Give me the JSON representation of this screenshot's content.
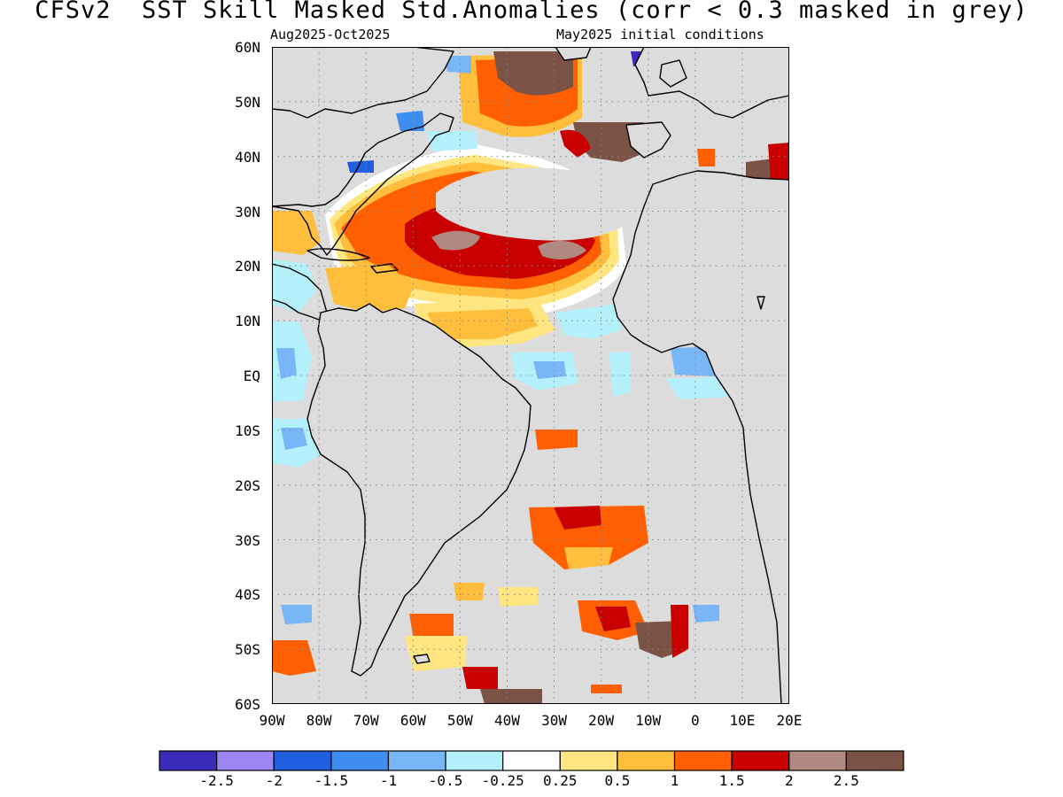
{
  "header": {
    "title": "CFSv2  SST Skill Masked Std.Anomalies (corr < 0.3 masked in grey)",
    "period": "Aug2025-Oct2025",
    "init": "May2025 initial conditions"
  },
  "map": {
    "region": "Atlantic Ocean",
    "lat_range": [
      -60,
      60
    ],
    "lon_range": [
      -90,
      20
    ],
    "lat_labels": [
      "60N",
      "50N",
      "40N",
      "30N",
      "20N",
      "10N",
      "EQ",
      "10S",
      "20S",
      "30S",
      "40S",
      "50S",
      "60S"
    ],
    "lat_values": [
      60,
      50,
      40,
      30,
      20,
      10,
      0,
      -10,
      -20,
      -30,
      -40,
      -50,
      -60
    ],
    "lon_labels": [
      "90W",
      "80W",
      "70W",
      "60W",
      "50W",
      "40W",
      "30W",
      "20W",
      "10W",
      "0",
      "10E",
      "20E"
    ],
    "lon_values": [
      -90,
      -80,
      -70,
      -60,
      -50,
      -40,
      -30,
      -20,
      -10,
      0,
      10,
      20
    ],
    "mask_color": "#dcdcdc",
    "coastline_color": "#000000",
    "grid_style": "dotted"
  },
  "colorbar": {
    "colors": [
      "#3b2bbb",
      "#9b86f2",
      "#1f5fe0",
      "#3d8ef0",
      "#78b6f7",
      "#b4f0fa",
      "#ffffff",
      "#ffe680",
      "#ffbe3c",
      "#ff5f00",
      "#c80000",
      "#b08a80",
      "#7a5246"
    ],
    "labels": [
      "-2.5",
      "-2",
      "-1.5",
      "-1",
      "-0.5",
      "-0.25",
      "0.25",
      "0.5",
      "1",
      "1.5",
      "2",
      "2.5"
    ]
  }
}
